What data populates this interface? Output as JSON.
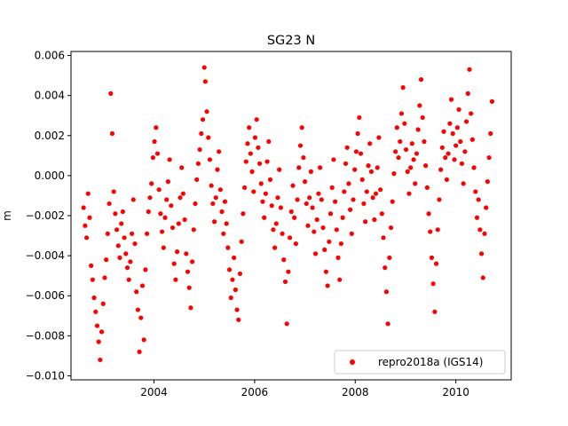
{
  "chart_data": {
    "type": "scatter",
    "title": "SG23 N",
    "xlabel": "",
    "ylabel": "m",
    "xlim": [
      2002.35,
      2011.1
    ],
    "ylim": [
      -0.0102,
      0.0062
    ],
    "xticks": [
      2004,
      2006,
      2008,
      2010
    ],
    "xtick_labels": [
      "2004",
      "2006",
      "2008",
      "2010"
    ],
    "yticks": [
      -0.01,
      -0.008,
      -0.006,
      -0.004,
      -0.002,
      0.0,
      0.002,
      0.004,
      0.006
    ],
    "ytick_labels": [
      "−0.010",
      "−0.008",
      "−0.006",
      "−0.004",
      "−0.002",
      "0.000",
      "0.002",
      "0.004",
      "0.006"
    ],
    "grid": false,
    "legend_position": "lower-right",
    "marker_color": "#ff0000",
    "series": [
      {
        "name": "repro2018a (IGS14)",
        "color": "#ff0000",
        "points": [
          [
            2002.6,
            -0.0016
          ],
          [
            2002.63,
            -0.0025
          ],
          [
            2002.66,
            -0.0031
          ],
          [
            2002.69,
            -0.0009
          ],
          [
            2002.72,
            -0.0021
          ],
          [
            2002.75,
            -0.0045
          ],
          [
            2002.78,
            -0.0052
          ],
          [
            2002.81,
            -0.0061
          ],
          [
            2002.84,
            -0.0068
          ],
          [
            2002.87,
            -0.0075
          ],
          [
            2002.9,
            -0.0083
          ],
          [
            2002.93,
            -0.0092
          ],
          [
            2002.96,
            -0.0078
          ],
          [
            2002.99,
            -0.0064
          ],
          [
            2003.02,
            -0.0051
          ],
          [
            2003.05,
            -0.0042
          ],
          [
            2003.08,
            -0.0029
          ],
          [
            2003.11,
            -0.0014
          ],
          [
            2003.14,
            0.0041
          ],
          [
            2003.17,
            0.0021
          ],
          [
            2003.2,
            -0.0008
          ],
          [
            2003.23,
            -0.0019
          ],
          [
            2003.26,
            -0.0027
          ],
          [
            2003.29,
            -0.0035
          ],
          [
            2003.32,
            -0.0041
          ],
          [
            2003.35,
            -0.0024
          ],
          [
            2003.38,
            -0.0018
          ],
          [
            2003.41,
            -0.0031
          ],
          [
            2003.44,
            -0.0039
          ],
          [
            2003.47,
            -0.0046
          ],
          [
            2003.5,
            -0.0052
          ],
          [
            2003.53,
            -0.0043
          ],
          [
            2003.56,
            -0.0029
          ],
          [
            2003.59,
            -0.0012
          ],
          [
            2003.62,
            -0.0034
          ],
          [
            2003.65,
            -0.0058
          ],
          [
            2003.68,
            -0.0067
          ],
          [
            2003.71,
            -0.0088
          ],
          [
            2003.74,
            -0.0071
          ],
          [
            2003.77,
            -0.0055
          ],
          [
            2003.8,
            -0.0082
          ],
          [
            2003.83,
            -0.0047
          ],
          [
            2003.86,
            -0.0029
          ],
          [
            2003.89,
            -0.0018
          ],
          [
            2003.92,
            -0.0011
          ],
          [
            2003.95,
            -0.0004
          ],
          [
            2003.98,
            0.0009
          ],
          [
            2004.01,
            0.0017
          ],
          [
            2004.04,
            0.0024
          ],
          [
            2004.07,
            0.0011
          ],
          [
            2004.1,
            -0.0007
          ],
          [
            2004.13,
            -0.0019
          ],
          [
            2004.16,
            -0.0028
          ],
          [
            2004.19,
            -0.0036
          ],
          [
            2004.22,
            -0.0021
          ],
          [
            2004.25,
            -0.0012
          ],
          [
            2004.28,
            -0.0003
          ],
          [
            2004.31,
            0.0008
          ],
          [
            2004.34,
            -0.0015
          ],
          [
            2004.37,
            -0.0026
          ],
          [
            2004.4,
            -0.0044
          ],
          [
            2004.43,
            -0.0052
          ],
          [
            2004.46,
            -0.0038
          ],
          [
            2004.49,
            -0.0024
          ],
          [
            2004.52,
            -0.0011
          ],
          [
            2004.55,
            0.0004
          ],
          [
            2004.58,
            -0.0009
          ],
          [
            2004.61,
            -0.0022
          ],
          [
            2004.64,
            -0.0039
          ],
          [
            2004.67,
            -0.0048
          ],
          [
            2004.7,
            -0.0056
          ],
          [
            2004.73,
            -0.0066
          ],
          [
            2004.76,
            -0.0043
          ],
          [
            2004.79,
            -0.0027
          ],
          [
            2004.82,
            -0.0014
          ],
          [
            2004.85,
            -0.0002
          ],
          [
            2004.88,
            0.0006
          ],
          [
            2004.91,
            0.0013
          ],
          [
            2004.94,
            0.0021
          ],
          [
            2004.97,
            0.0028
          ],
          [
            2005.0,
            0.0054
          ],
          [
            2005.02,
            0.0047
          ],
          [
            2005.05,
            0.0032
          ],
          [
            2005.08,
            0.0019
          ],
          [
            2005.11,
            0.0008
          ],
          [
            2005.14,
            -0.0005
          ],
          [
            2005.17,
            -0.0014
          ],
          [
            2005.2,
            -0.0023
          ],
          [
            2005.23,
            -0.0011
          ],
          [
            2005.26,
            0.0003
          ],
          [
            2005.29,
            0.0012
          ],
          [
            2005.32,
            -0.0007
          ],
          [
            2005.35,
            -0.0018
          ],
          [
            2005.38,
            -0.0029
          ],
          [
            2005.41,
            -0.0013
          ],
          [
            2005.44,
            -0.0024
          ],
          [
            2005.47,
            -0.0036
          ],
          [
            2005.5,
            -0.0047
          ],
          [
            2005.53,
            -0.0061
          ],
          [
            2005.56,
            -0.0052
          ],
          [
            2005.59,
            -0.0041
          ],
          [
            2005.62,
            -0.0057
          ],
          [
            2005.65,
            -0.0067
          ],
          [
            2005.68,
            -0.0072
          ],
          [
            2005.71,
            -0.0049
          ],
          [
            2005.74,
            -0.0033
          ],
          [
            2005.77,
            -0.0019
          ],
          [
            2005.8,
            -0.0006
          ],
          [
            2005.83,
            0.0007
          ],
          [
            2005.86,
            0.0016
          ],
          [
            2005.89,
            0.0024
          ],
          [
            2005.92,
            0.0011
          ],
          [
            2005.95,
            0.0002
          ],
          [
            2005.98,
            -0.0008
          ],
          [
            2006.01,
            0.0019
          ],
          [
            2006.04,
            0.0028
          ],
          [
            2006.07,
            0.0014
          ],
          [
            2006.1,
            0.0006
          ],
          [
            2006.13,
            -0.0004
          ],
          [
            2006.16,
            -0.0013
          ],
          [
            2006.19,
            -0.0021
          ],
          [
            2006.22,
            -0.0009
          ],
          [
            2006.25,
            0.0007
          ],
          [
            2006.28,
            0.0017
          ],
          [
            2006.31,
            -0.0002
          ],
          [
            2006.34,
            -0.0015
          ],
          [
            2006.37,
            -0.0027
          ],
          [
            2006.4,
            -0.0036
          ],
          [
            2006.43,
            -0.0024
          ],
          [
            2006.46,
            -0.0011
          ],
          [
            2006.49,
            0.0003
          ],
          [
            2006.52,
            -0.0016
          ],
          [
            2006.55,
            -0.0029
          ],
          [
            2006.58,
            -0.0042
          ],
          [
            2006.61,
            -0.0053
          ],
          [
            2006.64,
            -0.0074
          ],
          [
            2006.67,
            -0.0048
          ],
          [
            2006.7,
            -0.0031
          ],
          [
            2006.73,
            -0.0018
          ],
          [
            2006.76,
            -0.0005
          ],
          [
            2006.79,
            -0.0021
          ],
          [
            2006.82,
            -0.0034
          ],
          [
            2006.85,
            -0.0012
          ],
          [
            2006.88,
            0.0004
          ],
          [
            2006.91,
            0.0015
          ],
          [
            2006.94,
            0.0024
          ],
          [
            2006.97,
            0.0009
          ],
          [
            2007.0,
            -0.0003
          ],
          [
            2007.03,
            -0.0014
          ],
          [
            2007.06,
            -0.0025
          ],
          [
            2007.09,
            -0.0011
          ],
          [
            2007.12,
            0.0002
          ],
          [
            2007.15,
            -0.0016
          ],
          [
            2007.18,
            -0.0028
          ],
          [
            2007.21,
            -0.0039
          ],
          [
            2007.24,
            -0.0022
          ],
          [
            2007.27,
            -0.0009
          ],
          [
            2007.3,
            0.0004
          ],
          [
            2007.33,
            -0.0012
          ],
          [
            2007.36,
            -0.0026
          ],
          [
            2007.39,
            -0.0037
          ],
          [
            2007.42,
            -0.0048
          ],
          [
            2007.45,
            -0.0055
          ],
          [
            2007.48,
            -0.0033
          ],
          [
            2007.51,
            -0.0019
          ],
          [
            2007.54,
            -0.0006
          ],
          [
            2007.57,
            0.0008
          ],
          [
            2007.6,
            -0.0013
          ],
          [
            2007.63,
            -0.0027
          ],
          [
            2007.66,
            -0.0041
          ],
          [
            2007.69,
            -0.0052
          ],
          [
            2007.72,
            -0.0034
          ],
          [
            2007.75,
            -0.0021
          ],
          [
            2007.78,
            -0.0008
          ],
          [
            2007.81,
            0.0006
          ],
          [
            2007.84,
            0.0014
          ],
          [
            2007.87,
            -0.0004
          ],
          [
            2007.9,
            -0.0017
          ],
          [
            2007.93,
            -0.0029
          ],
          [
            2007.96,
            -0.0012
          ],
          [
            2007.99,
            0.0003
          ],
          [
            2008.02,
            0.0012
          ],
          [
            2008.05,
            0.0021
          ],
          [
            2008.08,
            0.0029
          ],
          [
            2008.11,
            0.0011
          ],
          [
            2008.14,
            -0.0002
          ],
          [
            2008.17,
            -0.0014
          ],
          [
            2008.2,
            -0.0023
          ],
          [
            2008.23,
            -0.0008
          ],
          [
            2008.26,
            0.0005
          ],
          [
            2008.29,
            0.0016
          ],
          [
            2008.32,
            0.0002
          ],
          [
            2008.35,
            -0.0011
          ],
          [
            2008.38,
            -0.0022
          ],
          [
            2008.41,
            -0.0009
          ],
          [
            2008.44,
            0.0004
          ],
          [
            2008.47,
            0.0019
          ],
          [
            2008.5,
            -0.0007
          ],
          [
            2008.53,
            -0.0019
          ],
          [
            2008.56,
            -0.0031
          ],
          [
            2008.59,
            -0.0046
          ],
          [
            2008.62,
            -0.0058
          ],
          [
            2008.65,
            -0.0074
          ],
          [
            2008.68,
            -0.0041
          ],
          [
            2008.71,
            -0.0026
          ],
          [
            2008.74,
            -0.0013
          ],
          [
            2008.77,
            0.0001
          ],
          [
            2008.8,
            0.0012
          ],
          [
            2008.83,
            0.0024
          ],
          [
            2008.86,
            0.0009
          ],
          [
            2008.89,
            0.0017
          ],
          [
            2008.92,
            0.0031
          ],
          [
            2008.95,
            0.0044
          ],
          [
            2008.98,
            0.0026
          ],
          [
            2009.01,
            0.0013
          ],
          [
            2009.04,
            0.0002
          ],
          [
            2009.07,
            -0.0009
          ],
          [
            2009.1,
            0.0004
          ],
          [
            2009.13,
            0.0016
          ],
          [
            2009.16,
            0.0008
          ],
          [
            2009.19,
            -0.0004
          ],
          [
            2009.22,
            0.0011
          ],
          [
            2009.25,
            0.0023
          ],
          [
            2009.28,
            0.0035
          ],
          [
            2009.31,
            0.0048
          ],
          [
            2009.34,
            0.0029
          ],
          [
            2009.37,
            0.0017
          ],
          [
            2009.4,
            0.0005
          ],
          [
            2009.43,
            -0.0006
          ],
          [
            2009.46,
            -0.0019
          ],
          [
            2009.49,
            -0.0028
          ],
          [
            2009.52,
            -0.0041
          ],
          [
            2009.55,
            -0.0054
          ],
          [
            2009.58,
            -0.0068
          ],
          [
            2009.61,
            -0.0044
          ],
          [
            2009.64,
            -0.0027
          ],
          [
            2009.67,
            -0.0012
          ],
          [
            2009.7,
            0.0003
          ],
          [
            2009.73,
            0.0014
          ],
          [
            2009.76,
            0.0022
          ],
          [
            2009.79,
            0.0009
          ],
          [
            2009.82,
            -0.0002
          ],
          [
            2009.85,
            0.0011
          ],
          [
            2009.88,
            0.0026
          ],
          [
            2009.91,
            0.0038
          ],
          [
            2009.94,
            0.0021
          ],
          [
            2009.97,
            0.0008
          ],
          [
            2010.0,
            0.0015
          ],
          [
            2010.03,
            0.0024
          ],
          [
            2010.06,
            0.0033
          ],
          [
            2010.09,
            0.0017
          ],
          [
            2010.12,
            0.0006
          ],
          [
            2010.15,
            -0.0004
          ],
          [
            2010.18,
            0.0012
          ],
          [
            2010.21,
            0.0027
          ],
          [
            2010.24,
            0.0041
          ],
          [
            2010.27,
            0.0053
          ],
          [
            2010.3,
            0.0031
          ],
          [
            2010.33,
            0.0018
          ],
          [
            2010.36,
            0.0004
          ],
          [
            2010.39,
            -0.0008
          ],
          [
            2010.42,
            -0.0021
          ],
          [
            2010.45,
            -0.0012
          ],
          [
            2010.48,
            -0.0027
          ],
          [
            2010.51,
            -0.0039
          ],
          [
            2010.54,
            -0.0051
          ],
          [
            2010.57,
            -0.0029
          ],
          [
            2010.6,
            -0.0016
          ],
          [
            2010.63,
            -0.0003
          ],
          [
            2010.66,
            0.0009
          ],
          [
            2010.69,
            0.0021
          ],
          [
            2010.72,
            0.0037
          ]
        ]
      }
    ]
  }
}
